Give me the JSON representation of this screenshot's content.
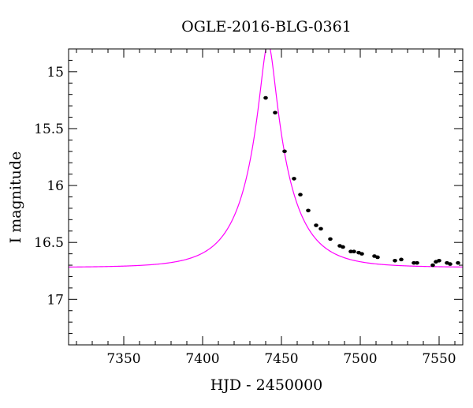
{
  "chart_data": {
    "type": "scatter",
    "title": "OGLE-2016-BLG-0361",
    "xlabel": "HJD - 2450000",
    "ylabel": "I magnitude",
    "xlim": [
      7315,
      7565
    ],
    "ylim": [
      17.4,
      14.8
    ],
    "y_inverted": true,
    "grid": false,
    "x_ticks": [
      7350,
      7400,
      7450,
      7500,
      7550
    ],
    "x_tick_labels": [
      "7350",
      "7400",
      "7450",
      "7500",
      "7550"
    ],
    "y_ticks": [
      15,
      15.5,
      16,
      16.5,
      17
    ],
    "y_tick_labels": [
      "15",
      "15.5",
      "16",
      "16.5",
      "17"
    ],
    "series": [
      {
        "kind": "points",
        "color": "#000000",
        "x": [
          7440,
          7446,
          7452,
          7458,
          7462,
          7467,
          7472,
          7475,
          7481,
          7487,
          7489,
          7494,
          7496,
          7499,
          7501,
          7509,
          7511,
          7522,
          7526,
          7534,
          7536,
          7546,
          7548,
          7550,
          7555,
          7557,
          7562
        ],
        "y": [
          15.23,
          15.36,
          15.7,
          15.94,
          16.08,
          16.22,
          16.35,
          16.38,
          16.47,
          16.53,
          16.54,
          16.58,
          16.58,
          16.59,
          16.6,
          16.62,
          16.63,
          16.66,
          16.65,
          16.68,
          16.68,
          16.7,
          16.67,
          16.66,
          16.68,
          16.69,
          16.68
        ]
      },
      {
        "kind": "model",
        "color": "#ff00ff",
        "model": {
          "t0": 7441.5,
          "tE": 27,
          "u0": 0.165,
          "base": 16.72
        }
      }
    ]
  }
}
